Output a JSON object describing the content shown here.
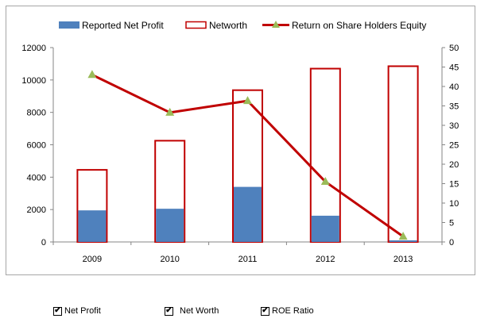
{
  "chart_data": {
    "type": "bar",
    "categories": [
      "2009",
      "2010",
      "2011",
      "2012",
      "2013"
    ],
    "series": [
      {
        "name": "Reported Net Profit",
        "kind": "bar-filled",
        "axis": "left",
        "color": "#4f81bd",
        "values": [
          1950,
          2050,
          3400,
          1620,
          100
        ]
      },
      {
        "name": "Networth",
        "kind": "bar-outline",
        "axis": "left",
        "color": "#c00000",
        "values": [
          4500,
          6300,
          9420,
          10750,
          10900
        ]
      },
      {
        "name": "Return on Share Holders Equity",
        "kind": "line",
        "axis": "right",
        "color": "#c00000",
        "marker_color": "#9bbb59",
        "values": [
          43,
          33.3,
          36.3,
          15.5,
          1.4
        ]
      }
    ],
    "y_left": {
      "lim": [
        0,
        12000
      ],
      "ticks": [
        0,
        2000,
        4000,
        6000,
        8000,
        10000,
        12000
      ]
    },
    "y_right": {
      "lim": [
        0,
        50
      ],
      "ticks": [
        0,
        5,
        10,
        15,
        20,
        25,
        30,
        35,
        40,
        45,
        50
      ]
    },
    "title": "",
    "xlabel": "",
    "ylabel": "",
    "grid": false,
    "legend_position": "top"
  },
  "controls": {
    "net_profit": {
      "label": "Net Profit",
      "checked": true
    },
    "net_worth": {
      "label": "Net Worth",
      "checked": true
    },
    "roe_ratio": {
      "label": "ROE Ratio",
      "checked": true
    }
  }
}
